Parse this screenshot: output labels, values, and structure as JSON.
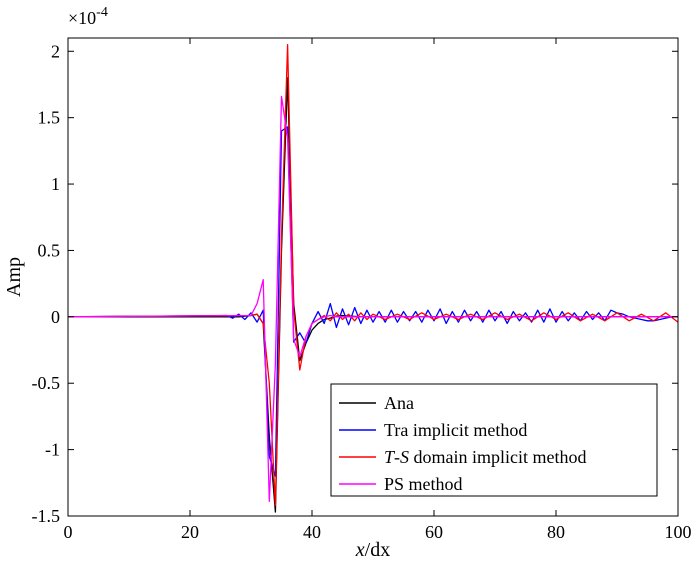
{
  "chart_data": {
    "type": "line",
    "xlabel_parts": [
      {
        "text": "x",
        "italic": true
      },
      {
        "text": "/dx",
        "italic": false
      }
    ],
    "ylabel": "Amp",
    "y_exponent": {
      "base": "×10",
      "power": "-4"
    },
    "xlim": [
      0,
      100
    ],
    "ylim": [
      -1.5,
      2.1
    ],
    "xticks": [
      0,
      20,
      40,
      60,
      80,
      100
    ],
    "yticks": [
      -1.5,
      -1,
      -0.5,
      0,
      0.5,
      1,
      1.5,
      2
    ],
    "xtick_labels": [
      "0",
      "20",
      "40",
      "60",
      "80",
      "100"
    ],
    "ytick_labels": [
      "-1.5",
      "-1",
      "-0.5",
      "0",
      "0.5",
      "1",
      "1.5",
      "2"
    ],
    "grid": false,
    "legend_position": "bottom-right",
    "series": [
      {
        "name": "Ana",
        "name_parts": [
          {
            "text": "Ana",
            "italic": false
          }
        ],
        "color": "#000000",
        "x": [
          0,
          28,
          30,
          31,
          32,
          33,
          34,
          35,
          36,
          37,
          38,
          39,
          40,
          41,
          42,
          43,
          44,
          45,
          46,
          47,
          48,
          50,
          100
        ],
        "y": [
          0,
          0,
          0.01,
          0.02,
          -0.05,
          -0.9,
          -1.47,
          0.5,
          1.8,
          0.1,
          -0.33,
          -0.2,
          -0.1,
          -0.05,
          -0.02,
          -0.01,
          0.005,
          0.01,
          0.005,
          0.003,
          0,
          0,
          0
        ]
      },
      {
        "name": "Tra implicit method",
        "name_parts": [
          {
            "text": "Tra implicit method",
            "italic": false
          }
        ],
        "color": "#0000ff",
        "x": [
          0,
          26,
          27,
          28,
          29,
          30,
          31,
          32,
          33,
          34,
          35,
          36,
          37,
          38,
          39,
          40,
          41,
          42,
          43,
          44,
          45,
          46,
          47,
          48,
          49,
          50,
          51,
          52,
          53,
          54,
          55,
          56,
          57,
          58,
          59,
          60,
          61,
          62,
          63,
          64,
          65,
          66,
          67,
          68,
          69,
          70,
          71,
          72,
          73,
          74,
          75,
          76,
          77,
          78,
          79,
          80,
          81,
          82,
          83,
          84,
          85,
          86,
          87,
          88,
          89,
          90,
          91,
          92,
          93,
          94,
          95,
          96,
          97,
          98,
          99,
          100
        ],
        "y": [
          0,
          0.01,
          -0.01,
          0.02,
          -0.02,
          0.03,
          -0.04,
          0.05,
          -1.05,
          -1.2,
          1.4,
          1.43,
          -0.19,
          -0.12,
          -0.2,
          -0.05,
          0.04,
          -0.05,
          0.1,
          -0.08,
          0.06,
          -0.06,
          0.07,
          -0.05,
          0.05,
          -0.04,
          0.04,
          -0.04,
          0.05,
          -0.04,
          0.04,
          -0.03,
          0.04,
          -0.04,
          0.05,
          -0.03,
          0.06,
          -0.05,
          0.04,
          -0.04,
          0.05,
          -0.03,
          0.04,
          -0.04,
          0.05,
          -0.03,
          0.04,
          -0.05,
          0.04,
          -0.03,
          0.03,
          -0.04,
          0.05,
          -0.04,
          0.06,
          -0.04,
          0.04,
          -0.03,
          0.03,
          -0.03,
          0.04,
          -0.02,
          0.03,
          -0.03,
          0.05,
          0.03,
          0.02,
          0,
          -0.01,
          -0.02,
          -0.03,
          -0.03,
          -0.02,
          -0.01,
          0,
          0
        ]
      },
      {
        "name": "T-S domain implicit method",
        "name_parts": [
          {
            "text": "T",
            "italic": true
          },
          {
            "text": "-",
            "italic": false
          },
          {
            "text": "S",
            "italic": true
          },
          {
            "text": " domain implicit method",
            "italic": false
          }
        ],
        "color": "#ff0000",
        "x": [
          0,
          30,
          31,
          32,
          33,
          34,
          35,
          36,
          37,
          38,
          39,
          40,
          41,
          42,
          43,
          44,
          45,
          46,
          47,
          48,
          49,
          50,
          52,
          54,
          56,
          58,
          60,
          62,
          64,
          66,
          68,
          70,
          72,
          74,
          76,
          78,
          80,
          82,
          84,
          86,
          88,
          90,
          92,
          94,
          96,
          98,
          100
        ],
        "y": [
          0,
          0.01,
          0.02,
          -0.05,
          -0.5,
          -1.42,
          0.6,
          2.05,
          0.05,
          -0.4,
          -0.15,
          -0.05,
          -0.02,
          0.01,
          -0.03,
          0.03,
          -0.02,
          0.02,
          -0.03,
          0.03,
          -0.02,
          0.02,
          -0.02,
          0.02,
          -0.02,
          0.03,
          -0.02,
          0.02,
          -0.02,
          0.02,
          -0.02,
          0.03,
          -0.02,
          0.02,
          -0.03,
          0.03,
          -0.02,
          0.03,
          -0.03,
          0.02,
          -0.03,
          0.03,
          -0.03,
          0.02,
          -0.03,
          0.03,
          -0.04
        ]
      },
      {
        "name": "PS method",
        "name_parts": [
          {
            "text": "PS method",
            "italic": false
          }
        ],
        "color": "#ff00ff",
        "x": [
          0,
          30,
          31,
          32,
          33,
          34,
          35,
          36,
          37,
          38,
          39,
          40,
          41,
          42,
          43,
          44,
          45,
          50,
          100
        ],
        "y": [
          0,
          0.01,
          0.1,
          0.28,
          -1.39,
          -0.35,
          1.66,
          1.35,
          -0.17,
          -0.3,
          -0.15,
          -0.05,
          -0.02,
          0,
          0.01,
          0,
          0,
          0,
          0
        ]
      }
    ]
  }
}
